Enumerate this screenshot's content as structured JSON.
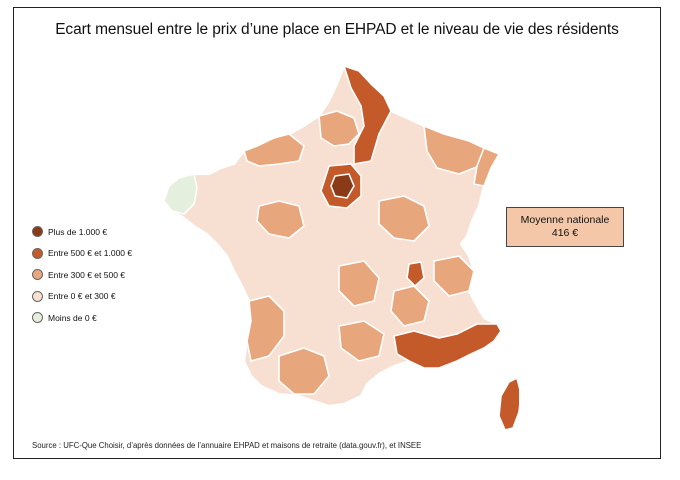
{
  "title": "Ecart mensuel entre le prix d’une place en EHPAD et le niveau de vie des résidents",
  "legend": [
    {
      "label": "Plus de 1.000 €",
      "color": "#8b3a18"
    },
    {
      "label": "Entre 500 € et 1.000 €",
      "color": "#c45a2a"
    },
    {
      "label": "Entre 300 € et 500 €",
      "color": "#e8a67d"
    },
    {
      "label": "Entre 0 € et 300 €",
      "color": "#f7dfd1"
    },
    {
      "label": "Moins de 0 €",
      "color": "#e4efdd"
    }
  ],
  "average": {
    "label": "Moyenne nationale",
    "value": "416 €"
  },
  "source": "Source : UFC-Que Choisir, d’après données de l’annuaire EHPAD et maisons de retraite (data.gouv.fr), et INSEE",
  "colors": {
    "very_high": "#8b3a18",
    "high": "#c45a2a",
    "medium": "#e8a67d",
    "low": "#f7dfd1",
    "negative": "#e4efdd"
  }
}
